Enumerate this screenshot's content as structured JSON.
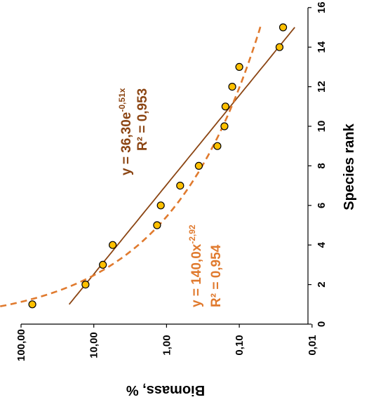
{
  "chart_data": {
    "type": "scatter",
    "xlabel": "Species rank",
    "ylabel": "Biomass, %",
    "x_ticks": [
      "0",
      "2",
      "4",
      "6",
      "8",
      "10",
      "12",
      "14",
      "16"
    ],
    "y_ticks": [
      "100,00",
      "10,00",
      "1,00",
      "0,10",
      "0,01"
    ],
    "xlim": [
      0,
      16
    ],
    "ylim": [
      0.01,
      100
    ],
    "y_scale": "log",
    "grid": false,
    "orientation": "rotated-90-clockwise",
    "points": [
      {
        "x": 1,
        "y": 70
      },
      {
        "x": 2,
        "y": 13
      },
      {
        "x": 3,
        "y": 7.5
      },
      {
        "x": 4,
        "y": 5.5
      },
      {
        "x": 5,
        "y": 1.35
      },
      {
        "x": 6,
        "y": 1.2
      },
      {
        "x": 7,
        "y": 0.65
      },
      {
        "x": 8,
        "y": 0.36
      },
      {
        "x": 9,
        "y": 0.2
      },
      {
        "x": 10,
        "y": 0.16
      },
      {
        "x": 11,
        "y": 0.155
      },
      {
        "x": 12,
        "y": 0.125
      },
      {
        "x": 13,
        "y": 0.1
      },
      {
        "x": 14,
        "y": 0.028
      },
      {
        "x": 15,
        "y": 0.025
      }
    ],
    "fits": [
      {
        "kind": "exponential",
        "a": 36.3,
        "b": -0.51,
        "x_range": [
          1,
          15
        ],
        "color": "#8B4513",
        "dashed": false,
        "eq_main": "y = 36,30e",
        "eq_sup": "-0,51x",
        "r2": "R² = 0,953"
      },
      {
        "kind": "power",
        "a": 140.0,
        "b": -2.92,
        "x_range": [
          0.8,
          15.2
        ],
        "color": "#E07A2E",
        "dashed": true,
        "eq_main": "y = 140,0x",
        "eq_sup": "-2,92",
        "r2": "R² = 0,954"
      }
    ],
    "point_fill": "#FFC000",
    "point_stroke": "#000000"
  }
}
